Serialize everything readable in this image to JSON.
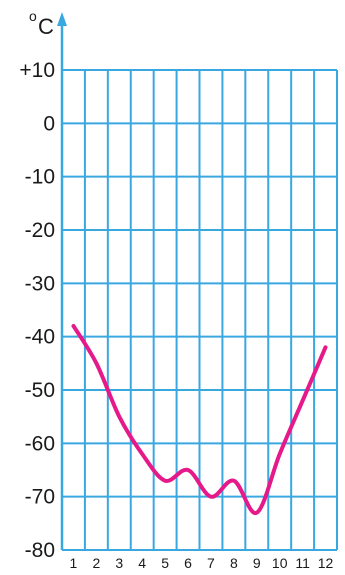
{
  "chart_data": {
    "type": "line",
    "title": "",
    "xlabel": "",
    "ylabel": "°C",
    "y_unit_degree": "o",
    "y_unit_letter": "C",
    "x": [
      1,
      2,
      3,
      4,
      5,
      6,
      7,
      8,
      9,
      10,
      11,
      12
    ],
    "x_tick_labels": [
      "1",
      "2",
      "3",
      "4",
      "5",
      "6",
      "7",
      "8",
      "9",
      "10",
      "11",
      "12"
    ],
    "y_tick_values": [
      10,
      0,
      -10,
      -20,
      -30,
      -40,
      -50,
      -60,
      -70,
      -80
    ],
    "y_tick_labels": [
      "+10",
      "0",
      "-10",
      "-20",
      "-30",
      "-40",
      "-50",
      "-60",
      "-70",
      "-80"
    ],
    "ylim": [
      -80,
      10
    ],
    "xlim": [
      0.5,
      12.5
    ],
    "grid": true,
    "series": [
      {
        "values": [
          -38,
          -45,
          -55,
          -62,
          -67,
          -65,
          -70,
          -67,
          -73,
          -62,
          -52,
          -42
        ]
      }
    ],
    "colors": {
      "grid": "#3aa8e0",
      "line": "#e6198a",
      "axis_arrow": "#3aa8e0",
      "text": "#1a1a1a"
    }
  }
}
